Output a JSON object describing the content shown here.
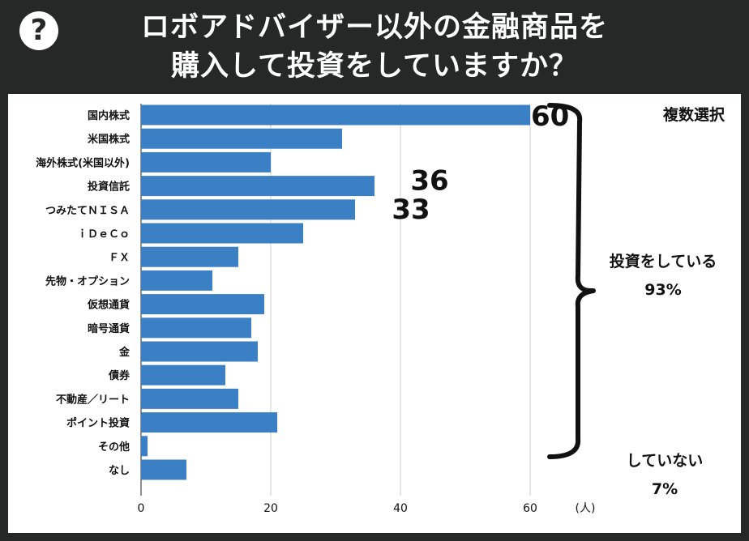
{
  "header": {
    "icon": "question-icon",
    "icon_glyph": "?",
    "title_line1": "ロボアドバイザー以外の金融商品を",
    "title_line2": "購入して投資をしていますか？"
  },
  "chart_data": {
    "type": "bar",
    "orientation": "horizontal",
    "categories": [
      "国内株式",
      "米国株式",
      "海外株式(米国以外)",
      "投資信託",
      "つみたてＮＩＳＡ",
      "ｉＤｅＣｏ",
      "ＦＸ",
      "先物・オプション",
      "仮想通貨",
      "暗号通貨",
      "金",
      "債券",
      "不動産／リート",
      "ポイント投資",
      "その他",
      "なし"
    ],
    "values": [
      60,
      31,
      20,
      36,
      33,
      25,
      15,
      11,
      19,
      17,
      18,
      13,
      15,
      21,
      1,
      7
    ],
    "x_ticks": [
      "0",
      "20",
      "40",
      "60"
    ],
    "xlim": [
      0,
      65
    ],
    "xlabel": "(人)",
    "bar_color": "#3b80c4",
    "grid": true,
    "highlight_labels": [
      {
        "category_index": 0,
        "text": "60"
      },
      {
        "category_index": 3,
        "text": "36"
      },
      {
        "category_index": 4,
        "text": "33"
      }
    ]
  },
  "annotations": {
    "multi_select": "複数選択",
    "investing_label": "投資をしている",
    "investing_pct": "93%",
    "not_investing_label": "していない",
    "not_investing_pct": "7%"
  }
}
